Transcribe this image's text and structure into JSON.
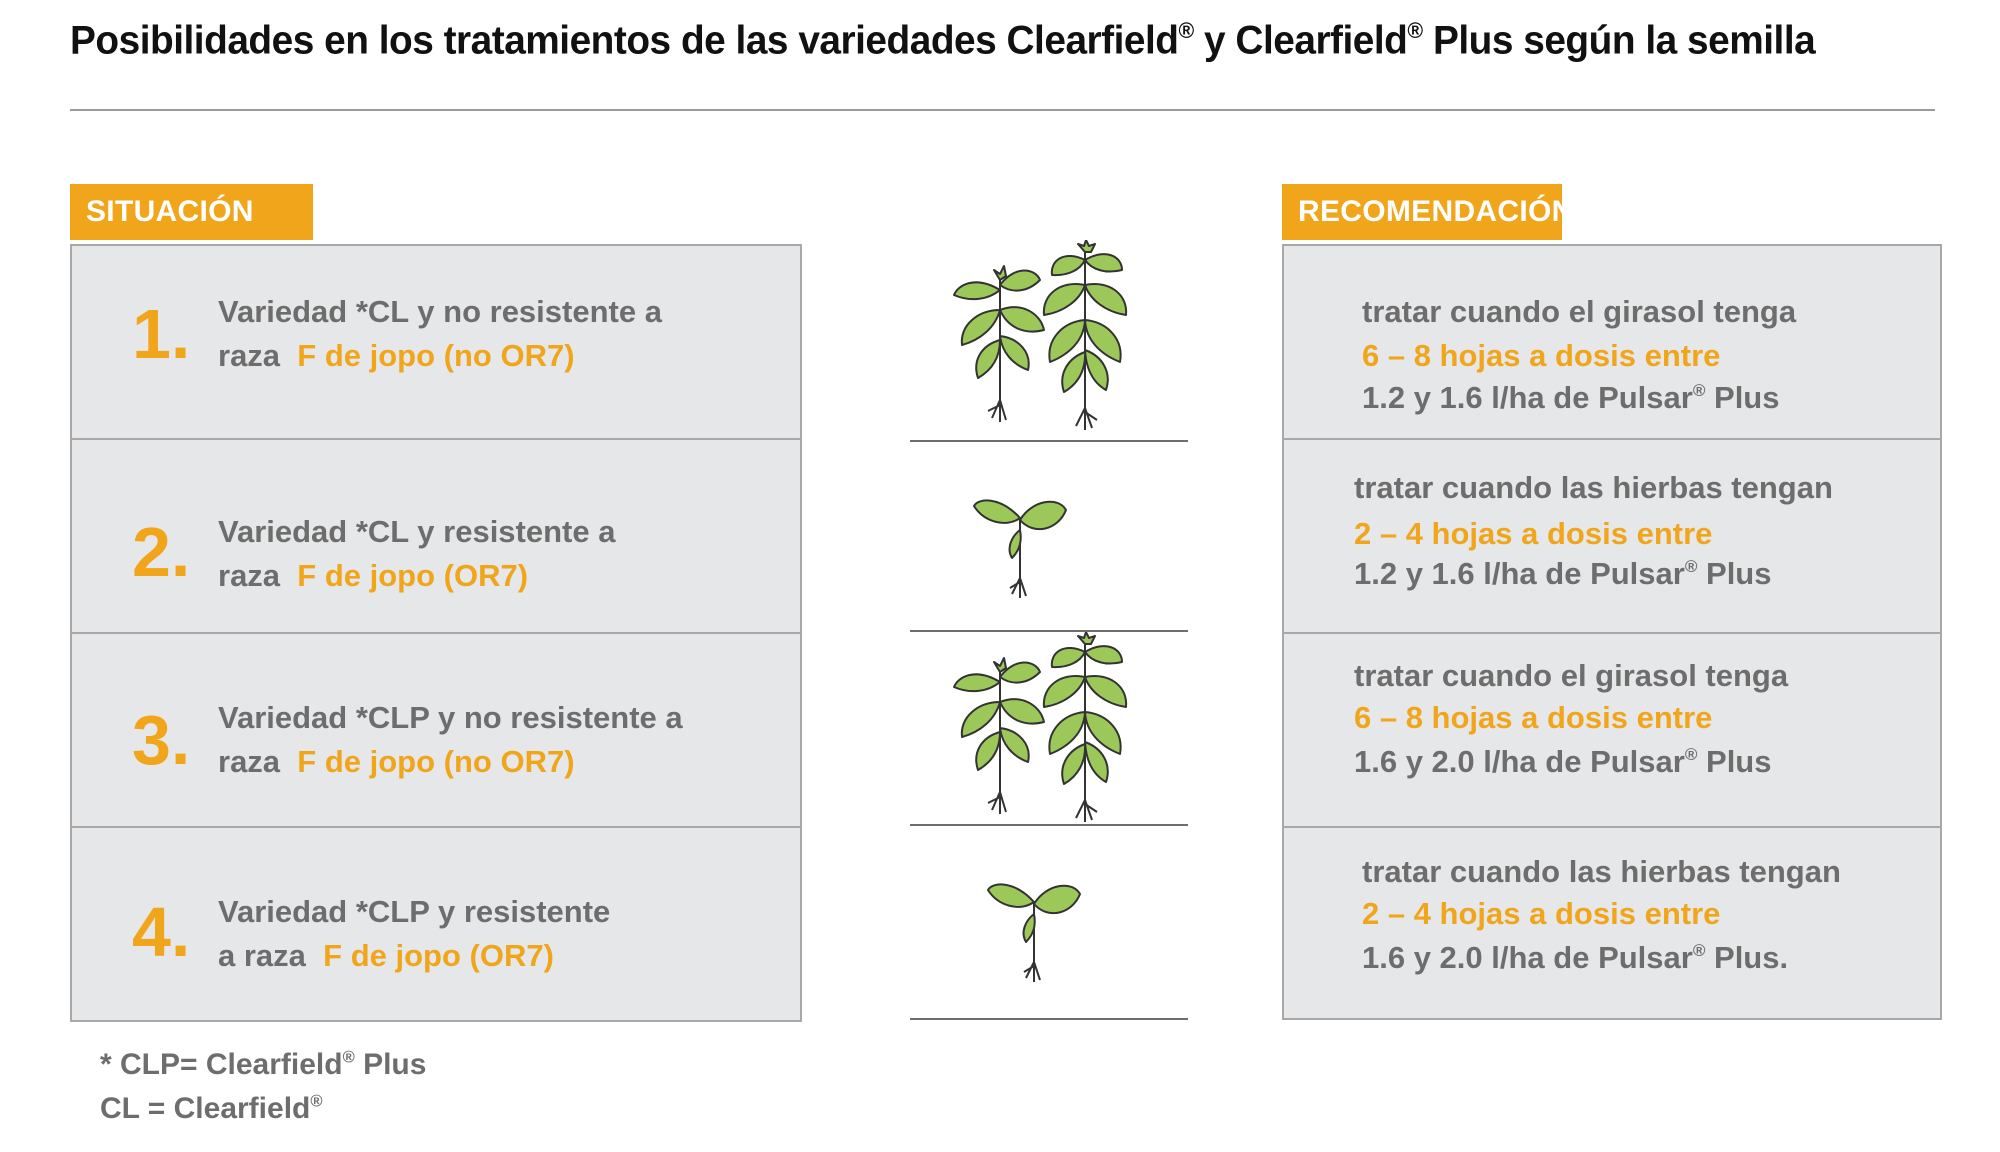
{
  "title_main": "Posibilidades en los tratamientos de las variedades Clearfield",
  "title_mid": " y Clearfield",
  "title_end": " Plus según la semilla",
  "reg": "®",
  "headers": {
    "situacion": "SITUACIÓN",
    "recomendacion": "RECOMENDACIÓN"
  },
  "rows": [
    {
      "num": "1.",
      "sit_line1": "Variedad *CL y no resistente a",
      "sit_prefix": "raza",
      "sit_highlight": "F de jopo (no OR7)",
      "plant": "large-sunflower-plants-icon",
      "rec_line1": "tratar cuando el girasol tenga",
      "rec_line2": "6 – 8 hojas a dosis entre",
      "rec_line3a": "1.2 y 1.6 l/ha de Pulsar",
      "rec_line3b": " Plus"
    },
    {
      "num": "2.",
      "sit_line1": "Variedad *CL y resistente a",
      "sit_prefix": "raza",
      "sit_highlight": "F de jopo (OR7)",
      "plant": "small-seedling-icon",
      "rec_line1": "tratar cuando las hierbas tengan",
      "rec_line2": "2 – 4 hojas a dosis entre",
      "rec_line3a": "1.2 y 1.6 l/ha de Pulsar",
      "rec_line3b": " Plus"
    },
    {
      "num": "3.",
      "sit_line1": "Variedad *CLP y no resistente a",
      "sit_prefix": "raza",
      "sit_highlight": "F de jopo (no OR7)",
      "plant": "large-sunflower-plants-icon",
      "rec_line1": "tratar cuando el girasol tenga",
      "rec_line2": "6 – 8 hojas a dosis entre",
      "rec_line3a": "1.6 y 2.0 l/ha de Pulsar",
      "rec_line3b": " Plus"
    },
    {
      "num": "4.",
      "sit_line1": "Variedad *CLP y resistente",
      "sit_prefix": "a raza",
      "sit_highlight": "F de jopo (OR7)",
      "plant": "small-seedling-icon",
      "rec_line1": "tratar cuando las hierbas tengan",
      "rec_line2": "2 – 4 hojas a dosis entre",
      "rec_line3a": "1.6 y 2.0 l/ha de Pulsar",
      "rec_line3b": " Plus."
    }
  ],
  "footnote": {
    "line1a": "* CLP= Clearfield",
    "line1b": " Plus",
    "line2a": "CL = Clearfield"
  },
  "colors": {
    "accent": "#f0a51b",
    "box_bg": "#e6e7e9",
    "text_gray": "#6d6d6d",
    "leaf": "#9cc85a",
    "leaf_outline": "#333333"
  }
}
